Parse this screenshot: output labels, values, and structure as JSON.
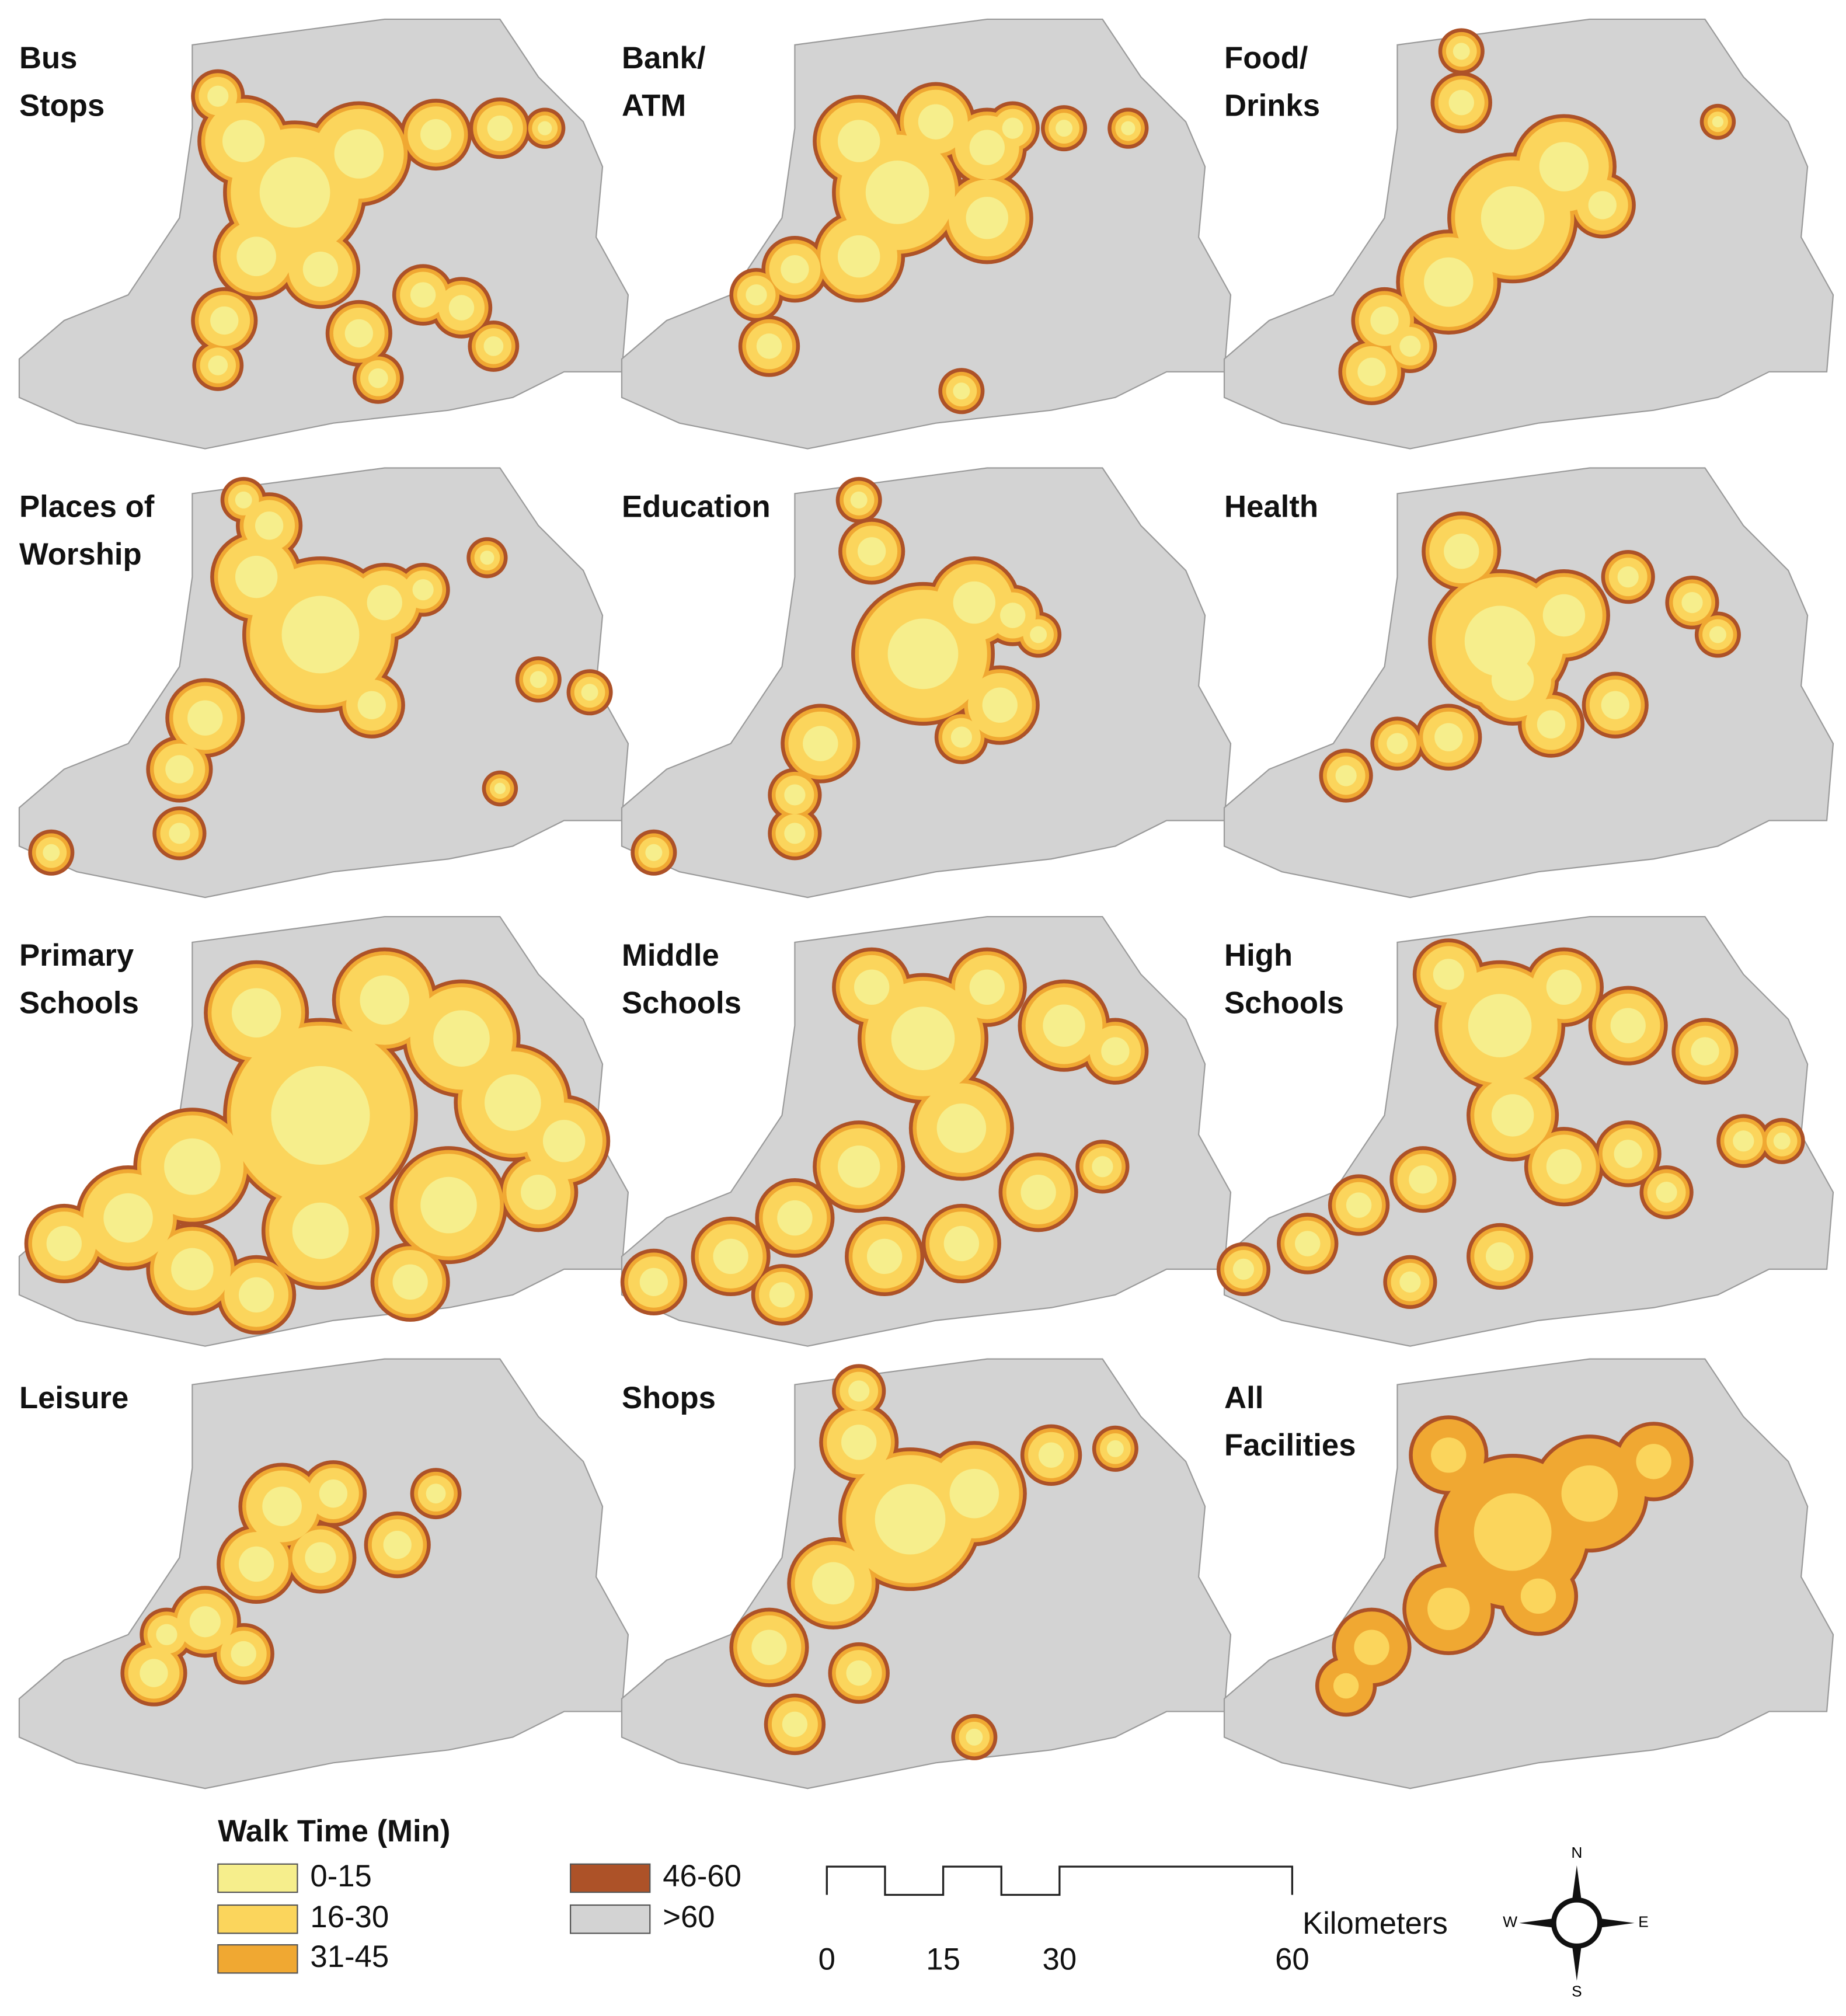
{
  "panels": [
    {
      "title": [
        "Bus",
        "Stops"
      ]
    },
    {
      "title": [
        "Bank/",
        "ATM"
      ]
    },
    {
      "title": [
        "Food/",
        "Drinks"
      ]
    },
    {
      "title": [
        "Places of",
        "Worship"
      ]
    },
    {
      "title": [
        "Education"
      ]
    },
    {
      "title": [
        "Health"
      ]
    },
    {
      "title": [
        "Primary",
        "Schools"
      ]
    },
    {
      "title": [
        "Middle",
        "Schools"
      ]
    },
    {
      "title": [
        "High",
        "Schools"
      ]
    },
    {
      "title": [
        "Leisure"
      ]
    },
    {
      "title": [
        "Shops"
      ]
    },
    {
      "title": [
        "All",
        "Facilities"
      ]
    }
  ],
  "legend": {
    "title": "Walk Time (Min)",
    "items": [
      {
        "label": "0-15",
        "color": "#f6ee8c"
      },
      {
        "label": "16-30",
        "color": "#fbd55c"
      },
      {
        "label": "31-45",
        "color": "#f0a832"
      },
      {
        "label": "46-60",
        "color": "#ad5228"
      },
      {
        "label": ">60",
        "color": "#d3d3d3"
      }
    ]
  },
  "scale_bar": {
    "unit": "Kilometers",
    "ticks": [
      0,
      15,
      30,
      60
    ]
  },
  "compass": {
    "north": "N",
    "east": "E",
    "south": "S",
    "west": "W"
  }
}
